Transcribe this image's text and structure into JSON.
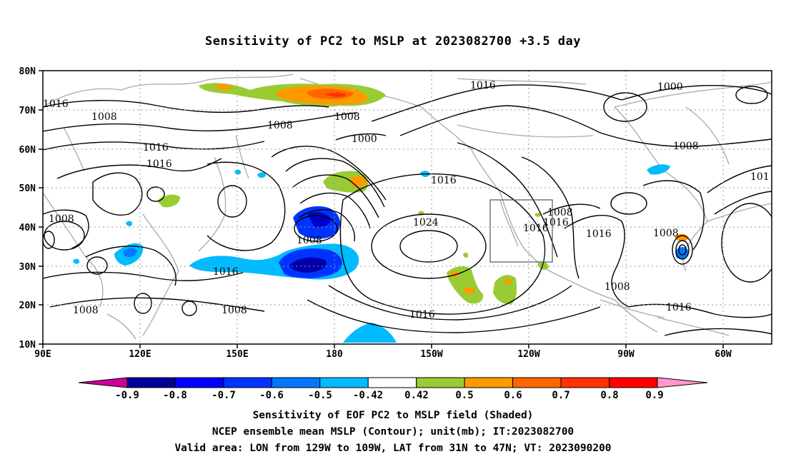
{
  "title": "Sensitivity of PC2 to MSLP at 2023082700 +3.5 day",
  "map": {
    "lat_labels": [
      "80N",
      "70N",
      "60N",
      "50N",
      "40N",
      "30N",
      "20N",
      "10N"
    ],
    "lon_labels": [
      "90E",
      "120E",
      "150E",
      "180",
      "150W",
      "120W",
      "90W",
      "60W"
    ],
    "contour_labels": [
      "1016",
      "1008",
      "1008",
      "1016",
      "1016",
      "1008",
      "1016",
      "1008",
      "1008",
      "1016",
      "1008",
      "1000",
      "1008",
      "1016",
      "1024",
      "1016",
      "1008",
      "1016",
      "1016",
      "1016",
      "1008",
      "1008",
      "1008",
      "1016",
      "1016",
      "1000",
      "1008",
      "101"
    ],
    "valid_area_box": {
      "lon_west": -129,
      "lon_east": -109,
      "lat_south": 31,
      "lat_north": 47
    }
  },
  "colorbar": {
    "labels": [
      "-0.9",
      "-0.8",
      "-0.7",
      "-0.6",
      "-0.5",
      "-0.42",
      "0.42",
      "0.5",
      "0.6",
      "0.7",
      "0.8",
      "0.9"
    ],
    "colors": [
      "#000099",
      "#0000ff",
      "#0033ff",
      "#0077ff",
      "#00bbff",
      "#ffffff",
      "#99cc33",
      "#ff9900",
      "#ff6600",
      "#ff3300",
      "#ff0000"
    ],
    "low_arrow_color": "#cc0099",
    "high_arrow_color": "#ff99cc"
  },
  "captions": {
    "line1": "Sensitivity of EOF PC2 to MSLP field (Shaded)",
    "line2": "NCEP ensemble mean MSLP (Contour); unit(mb); IT:2023082700",
    "line3": "Valid area: LON from 129W to 109W, LAT from 31N to 47N; VT: 2023090200"
  }
}
